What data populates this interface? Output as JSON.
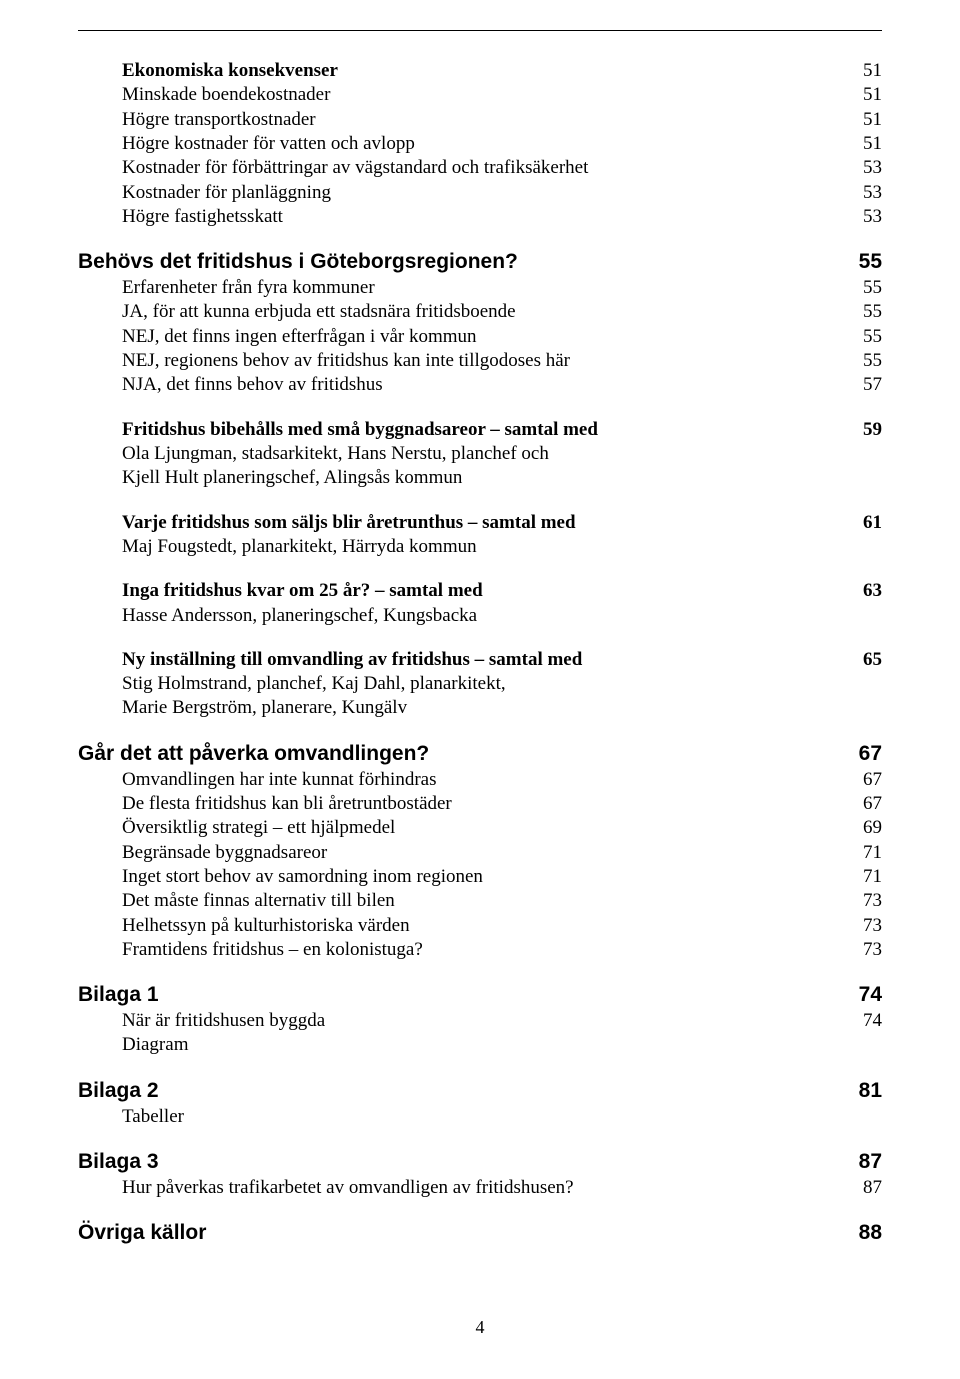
{
  "group1": {
    "items": [
      {
        "label": "Ekonomiska konsekvenser",
        "page": "51",
        "bold": true
      },
      {
        "label": "Minskade boendekostnader",
        "page": "51"
      },
      {
        "label": "Högre transportkostnader",
        "page": "51"
      },
      {
        "label": "Högre kostnader för vatten och avlopp",
        "page": "51"
      },
      {
        "label": "Kostnader för förbättringar av vägstandard och trafiksäkerhet",
        "page": "53"
      },
      {
        "label": "Kostnader för planläggning",
        "page": "53"
      },
      {
        "label": "Högre fastighetsskatt",
        "page": "53"
      }
    ]
  },
  "section2": {
    "title": "Behövs det fritidshus i Göteborgsregionen?",
    "page": "55",
    "items": [
      {
        "label": "Erfarenheter från fyra kommuner",
        "page": "55"
      },
      {
        "label": "JA, för att kunna erbjuda ett stadsnära fritidsboende",
        "page": "55"
      },
      {
        "label": "NEJ, det finns ingen efterfrågan i vår kommun",
        "page": "55"
      },
      {
        "label": "NEJ, regionens behov av fritidshus kan inte tillgodoses här",
        "page": "55"
      },
      {
        "label": "NJA, det finns behov av fritidshus",
        "page": "57"
      }
    ]
  },
  "block1": {
    "title": "Fritidshus bibehålls med små byggnadsareor – samtal med",
    "page": "59",
    "lines": [
      "Ola Ljungman, stadsarkitekt, Hans Nerstu, planchef och",
      "Kjell Hult planeringschef, Alingsås kommun"
    ]
  },
  "block2": {
    "title": "Varje fritidshus som säljs blir åretrunthus – samtal med",
    "page": "61",
    "lines": [
      "Maj Fougstedt, planarkitekt, Härryda kommun"
    ]
  },
  "block3": {
    "title": "Inga fritidshus kvar om 25 år? – samtal med",
    "page": "63",
    "lines": [
      "Hasse Andersson, planeringschef, Kungsbacka"
    ]
  },
  "block4": {
    "title": "Ny inställning till omvandling av fritidshus – samtal med",
    "page": "65",
    "lines": [
      "Stig Holmstrand, planchef, Kaj Dahl, planarkitekt,",
      "Marie Bergström, planerare, Kungälv"
    ]
  },
  "section3": {
    "title": "Går det att påverka omvandlingen?",
    "page": "67",
    "items": [
      {
        "label": "Omvandlingen har inte kunnat förhindras",
        "page": "67"
      },
      {
        "label": "De flesta fritidshus kan bli åretruntbostäder",
        "page": "67"
      },
      {
        "label": "Översiktlig strategi – ett hjälpmedel",
        "page": "69"
      },
      {
        "label": "Begränsade byggnadsareor",
        "page": "71"
      },
      {
        "label": "Inget stort behov av samordning inom regionen",
        "page": "71"
      },
      {
        "label": "Det måste finnas alternativ till bilen",
        "page": "73"
      },
      {
        "label": "Helhetssyn på kulturhistoriska värden",
        "page": "73"
      },
      {
        "label": "Framtidens fritidshus – en kolonistuga?",
        "page": "73"
      }
    ]
  },
  "bilaga1": {
    "title": "Bilaga 1",
    "page": "74",
    "items": [
      {
        "label": "När är fritidshusen byggda",
        "page": "74"
      },
      {
        "label": "Diagram",
        "page": ""
      }
    ]
  },
  "bilaga2": {
    "title": "Bilaga 2",
    "page": "81",
    "items": [
      {
        "label": "Tabeller",
        "page": ""
      }
    ]
  },
  "bilaga3": {
    "title": "Bilaga 3",
    "page": "87",
    "items": [
      {
        "label": "Hur påverkas trafikarbetet av omvandligen av fritidshusen?",
        "page": "87"
      }
    ]
  },
  "ovriga": {
    "title": "Övriga källor",
    "page": "88"
  },
  "footer_page": "4"
}
